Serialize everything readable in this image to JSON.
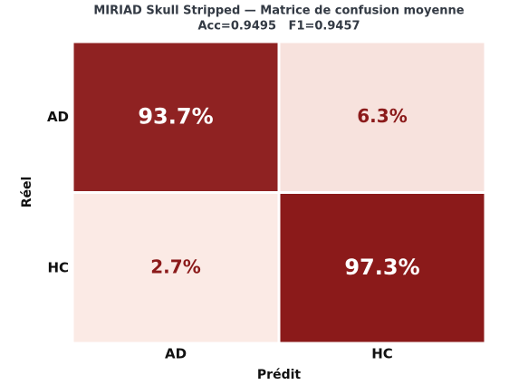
{
  "chart_data": {
    "type": "heatmap",
    "title": "MIRIAD Skull Stripped — Matrice de confusion moyenne",
    "subtitle": "Acc=0.9495   F1=0.9457",
    "x_label": "Prédit",
    "y_label": "Réel",
    "x_categories": [
      "AD",
      "HC"
    ],
    "y_categories": [
      "AD",
      "HC"
    ],
    "values": [
      [
        93.7,
        6.3
      ],
      [
        2.7,
        97.3
      ]
    ],
    "value_labels": [
      [
        "93.7%",
        "6.3%"
      ],
      [
        "2.7%",
        "97.3%"
      ]
    ],
    "colors": [
      "#fbeae5",
      "#8b1a1a"
    ]
  }
}
